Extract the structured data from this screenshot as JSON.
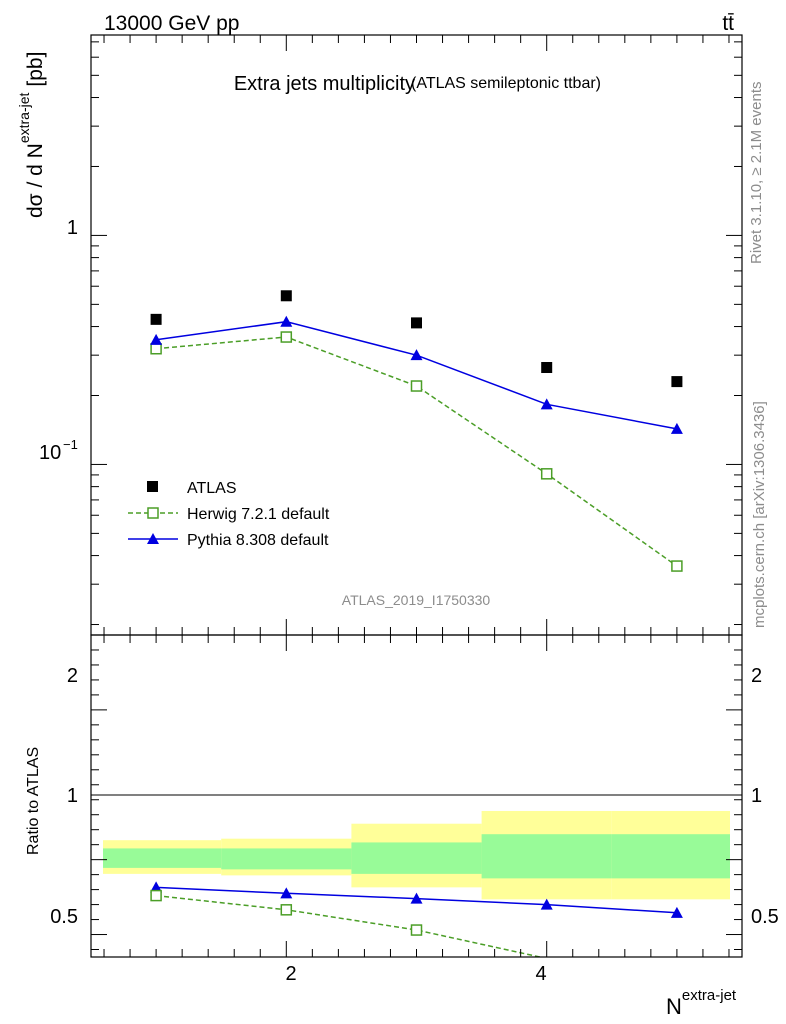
{
  "header": {
    "energy": "13000 GeV pp",
    "process": "tt̄"
  },
  "side_labels": {
    "rivet": "Rivet 3.1.10, ≥ 2.1M events",
    "mcplots": "mcplots.cern.ch [arXiv:1306.3436]"
  },
  "watermark": "ATLAS_2019_I1750330",
  "chart_data": [
    {
      "type": "scatter",
      "title": "Extra jets multiplicity",
      "subtitle": "(ATLAS semileptonic ttbar)",
      "ylabel": "dσ / d N",
      "ylabel_sup": "extra-jet",
      "ylabel_unit": "[pb]",
      "yscale": "log",
      "xlim": [
        0.5,
        5.5
      ],
      "ylim": [
        0.018,
        7.5
      ],
      "ytick_labels": [
        "1",
        "10",
        "−1"
      ],
      "x": [
        1,
        2,
        3,
        4,
        5
      ],
      "series": [
        {
          "name": "ATLAS",
          "color": "#000000",
          "marker": "square",
          "values": [
            0.43,
            0.545,
            0.415,
            0.265,
            0.23
          ]
        },
        {
          "name": "Herwig 7.2.1 default",
          "color": "#4b9e27",
          "marker": "open-square",
          "linestyle": "dashed",
          "values": [
            0.32,
            0.36,
            0.22,
            0.091,
            0.036
          ]
        },
        {
          "name": "Pythia 8.308 default",
          "color": "#0000e0",
          "marker": "triangle",
          "linestyle": "solid",
          "values": [
            0.35,
            0.42,
            0.3,
            0.183,
            0.143
          ]
        }
      ],
      "legend_position": "lower-left"
    },
    {
      "type": "line",
      "ylabel": "Ratio to ATLAS",
      "xlabel": "N",
      "xlabel_sup": "extra-jet",
      "xlim": [
        0.5,
        5.5
      ],
      "ylim": [
        0.35,
        2.5
      ],
      "xtick_labels": [
        "2",
        "4"
      ],
      "ytick_labels": [
        "0.5",
        "1",
        "2"
      ],
      "x": [
        1,
        2,
        3,
        4,
        5
      ],
      "bands": {
        "stat": {
          "color": "#98fb98",
          "low": [
            0.945,
            0.935,
            0.905,
            0.875,
            0.875
          ],
          "high": [
            1.075,
            1.075,
            1.115,
            1.17,
            1.17
          ]
        },
        "total": {
          "color": "#ffff99",
          "low": [
            0.905,
            0.895,
            0.815,
            0.735,
            0.735
          ],
          "high": [
            1.13,
            1.14,
            1.24,
            1.325,
            1.325
          ]
        }
      },
      "series": [
        {
          "name": "Herwig 7.2.1 default",
          "color": "#4b9e27",
          "marker": "open-square",
          "linestyle": "dashed",
          "values": [
            0.76,
            0.665,
            0.53,
            0.34,
            0.16
          ]
        },
        {
          "name": "Pythia 8.308 default",
          "color": "#0000e0",
          "marker": "triangle",
          "linestyle": "solid",
          "values": [
            0.815,
            0.775,
            0.74,
            0.7,
            0.645
          ],
          "errors": [
            0.012,
            0.01,
            0.018,
            0.02,
            0.022
          ]
        }
      ]
    }
  ]
}
